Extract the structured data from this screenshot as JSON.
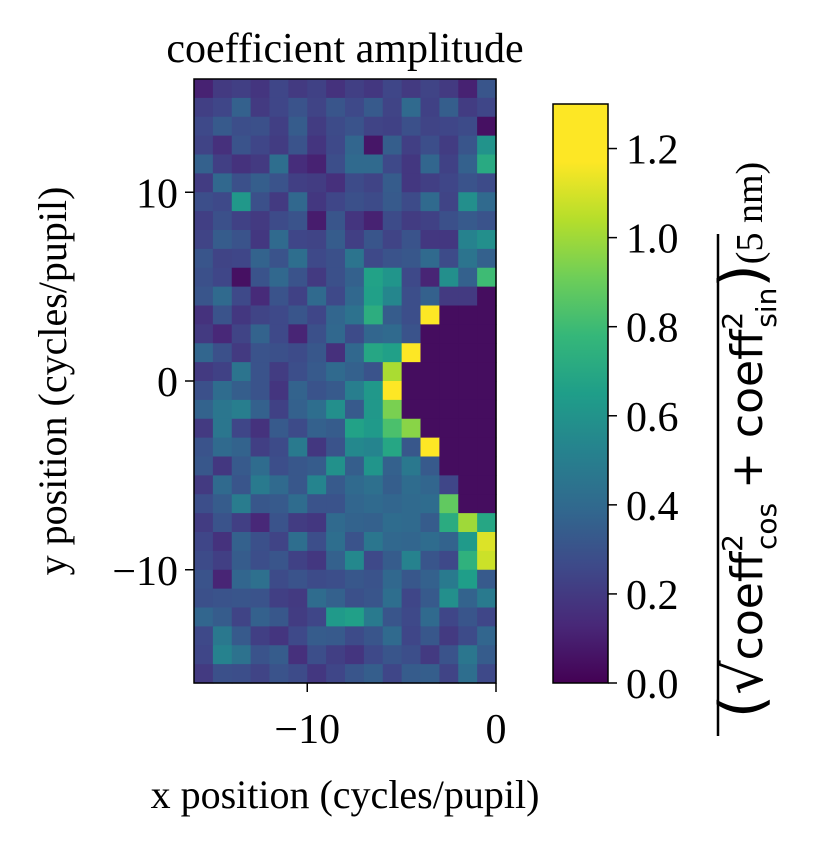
{
  "chart_data": {
    "type": "heatmap",
    "title": "coefficient amplitude",
    "xlabel": "x position (cycles/pupil)",
    "ylabel": "y position (cycles/pupil)",
    "xlim": [
      -16,
      0
    ],
    "ylim": [
      -16,
      16
    ],
    "x_ticks": [
      -10,
      0
    ],
    "x_tick_labels": [
      "−10",
      "0"
    ],
    "y_ticks": [
      -10,
      0,
      10
    ],
    "y_tick_labels": [
      "−10",
      "0",
      "10"
    ],
    "grid": false,
    "colormap": "viridis",
    "colorbar": {
      "vmin": 0.0,
      "vmax": 1.3,
      "ticks": [
        0.0,
        0.2,
        0.4,
        0.6,
        0.8,
        1.0,
        1.2
      ],
      "tick_labels": [
        "0.0",
        "0.2",
        "0.4",
        "0.6",
        "0.8",
        "1.0",
        "1.2"
      ],
      "label_open": "(",
      "label_sqrt": "√",
      "label_term1_base": "coeff",
      "label_term1_sup": "2",
      "label_term1_sub": "cos",
      "label_plus": " + ",
      "label_term2_base": "coeff",
      "label_term2_sup": "2",
      "label_term2_sub": "sin",
      "label_close": ")",
      "label_unit": "(5 nm)"
    },
    "grid_shape": [
      32,
      16
    ],
    "y_centers": [
      15.5,
      -15.5
    ],
    "x_centers": [
      -15.5,
      -0.5
    ],
    "dark_region_description": "coefficients are zero where sqrt(x^2 + y^2) < 5 (masked zone at right edge)",
    "values": [
      [
        0.11,
        0.2,
        0.22,
        0.18,
        0.25,
        0.2,
        0.23,
        0.17,
        0.22,
        0.19,
        0.25,
        0.2,
        0.24,
        0.2,
        0.11,
        0.31
      ],
      [
        0.22,
        0.25,
        0.36,
        0.2,
        0.25,
        0.3,
        0.24,
        0.31,
        0.26,
        0.33,
        0.24,
        0.4,
        0.23,
        0.35,
        0.21,
        0.25
      ],
      [
        0.26,
        0.33,
        0.28,
        0.29,
        0.22,
        0.34,
        0.21,
        0.27,
        0.3,
        0.24,
        0.23,
        0.29,
        0.24,
        0.25,
        0.27,
        0.05
      ],
      [
        0.24,
        0.16,
        0.3,
        0.25,
        0.21,
        0.3,
        0.18,
        0.26,
        0.38,
        0.07,
        0.35,
        0.22,
        0.28,
        0.21,
        0.31,
        0.6
      ],
      [
        0.36,
        0.22,
        0.17,
        0.2,
        0.42,
        0.15,
        0.11,
        0.28,
        0.4,
        0.4,
        0.26,
        0.19,
        0.38,
        0.23,
        0.36,
        0.71
      ],
      [
        0.21,
        0.39,
        0.29,
        0.35,
        0.3,
        0.22,
        0.21,
        0.16,
        0.27,
        0.24,
        0.34,
        0.19,
        0.22,
        0.25,
        0.3,
        0.27
      ],
      [
        0.28,
        0.26,
        0.62,
        0.29,
        0.2,
        0.39,
        0.19,
        0.25,
        0.29,
        0.27,
        0.33,
        0.27,
        0.4,
        0.24,
        0.58,
        0.4
      ],
      [
        0.22,
        0.29,
        0.23,
        0.2,
        0.27,
        0.3,
        0.09,
        0.31,
        0.18,
        0.11,
        0.27,
        0.21,
        0.23,
        0.29,
        0.33,
        0.3
      ],
      [
        0.24,
        0.34,
        0.3,
        0.19,
        0.4,
        0.25,
        0.24,
        0.34,
        0.22,
        0.31,
        0.24,
        0.3,
        0.19,
        0.19,
        0.52,
        0.58
      ],
      [
        0.31,
        0.24,
        0.25,
        0.37,
        0.3,
        0.42,
        0.26,
        0.29,
        0.45,
        0.26,
        0.3,
        0.32,
        0.4,
        0.27,
        0.45,
        0.36
      ],
      [
        0.29,
        0.25,
        0.05,
        0.3,
        0.39,
        0.3,
        0.2,
        0.29,
        0.36,
        0.67,
        0.61,
        0.26,
        0.12,
        0.58,
        0.36,
        0.8
      ],
      [
        0.31,
        0.4,
        0.26,
        0.14,
        0.3,
        0.23,
        0.4,
        0.26,
        0.39,
        0.66,
        0.54,
        0.28,
        0.36,
        0.2,
        0.2,
        0.04
      ],
      [
        0.17,
        0.3,
        0.19,
        0.24,
        0.26,
        0.31,
        0.25,
        0.38,
        0.44,
        0.73,
        0.34,
        0.28,
        1.22,
        0.04,
        0.04,
        0.04
      ],
      [
        0.2,
        0.13,
        0.24,
        0.37,
        0.26,
        0.12,
        0.29,
        0.39,
        0.27,
        0.38,
        0.4,
        0.3,
        0.04,
        0.04,
        0.04,
        0.04
      ],
      [
        0.38,
        0.29,
        0.2,
        0.3,
        0.29,
        0.27,
        0.32,
        0.16,
        0.39,
        0.69,
        0.66,
        1.28,
        0.04,
        0.04,
        0.04,
        0.04
      ],
      [
        0.2,
        0.23,
        0.45,
        0.3,
        0.21,
        0.28,
        0.33,
        0.4,
        0.36,
        0.3,
        1.02,
        0.04,
        0.04,
        0.04,
        0.04,
        0.04
      ],
      [
        0.29,
        0.41,
        0.35,
        0.3,
        0.18,
        0.37,
        0.3,
        0.33,
        0.5,
        0.62,
        1.18,
        0.04,
        0.04,
        0.04,
        0.04,
        0.04
      ],
      [
        0.37,
        0.46,
        0.5,
        0.36,
        0.23,
        0.36,
        0.42,
        0.58,
        0.33,
        0.62,
        0.93,
        0.04,
        0.04,
        0.04,
        0.04,
        0.04
      ],
      [
        0.2,
        0.46,
        0.25,
        0.17,
        0.33,
        0.27,
        0.36,
        0.34,
        0.67,
        0.63,
        0.83,
        0.96,
        0.04,
        0.04,
        0.04,
        0.04
      ],
      [
        0.3,
        0.4,
        0.37,
        0.22,
        0.27,
        0.48,
        0.19,
        0.3,
        0.55,
        0.53,
        0.69,
        0.32,
        1.3,
        0.04,
        0.04,
        0.04
      ],
      [
        0.32,
        0.19,
        0.33,
        0.41,
        0.28,
        0.32,
        0.34,
        0.59,
        0.35,
        0.61,
        0.36,
        0.47,
        0.33,
        0.04,
        0.04,
        0.04
      ],
      [
        0.2,
        0.4,
        0.31,
        0.48,
        0.4,
        0.32,
        0.53,
        0.33,
        0.4,
        0.43,
        0.35,
        0.41,
        0.38,
        0.25,
        0.04,
        0.04
      ],
      [
        0.28,
        0.34,
        0.49,
        0.32,
        0.33,
        0.41,
        0.3,
        0.3,
        0.38,
        0.4,
        0.38,
        0.4,
        0.41,
        0.88,
        0.04,
        0.04
      ],
      [
        0.21,
        0.3,
        0.22,
        0.13,
        0.3,
        0.21,
        0.19,
        0.4,
        0.37,
        0.36,
        0.41,
        0.4,
        0.34,
        0.72,
        1.0,
        0.69
      ],
      [
        0.25,
        0.17,
        0.36,
        0.29,
        0.24,
        0.42,
        0.28,
        0.42,
        0.3,
        0.46,
        0.39,
        0.38,
        0.41,
        0.37,
        0.63,
        1.11
      ],
      [
        0.27,
        0.22,
        0.34,
        0.28,
        0.31,
        0.23,
        0.19,
        0.36,
        0.55,
        0.26,
        0.34,
        0.52,
        0.31,
        0.26,
        0.75,
        1.08
      ],
      [
        0.3,
        0.12,
        0.38,
        0.43,
        0.27,
        0.3,
        0.27,
        0.28,
        0.32,
        0.3,
        0.39,
        0.32,
        0.36,
        0.48,
        0.65,
        0.33
      ],
      [
        0.29,
        0.3,
        0.31,
        0.3,
        0.22,
        0.2,
        0.41,
        0.36,
        0.29,
        0.31,
        0.42,
        0.25,
        0.33,
        0.58,
        0.37,
        0.48
      ],
      [
        0.38,
        0.34,
        0.24,
        0.36,
        0.32,
        0.21,
        0.25,
        0.63,
        0.66,
        0.48,
        0.31,
        0.26,
        0.4,
        0.25,
        0.31,
        0.25
      ],
      [
        0.26,
        0.47,
        0.33,
        0.22,
        0.18,
        0.26,
        0.34,
        0.33,
        0.27,
        0.31,
        0.4,
        0.25,
        0.32,
        0.2,
        0.27,
        0.38
      ],
      [
        0.25,
        0.52,
        0.44,
        0.3,
        0.34,
        0.16,
        0.28,
        0.22,
        0.18,
        0.26,
        0.31,
        0.28,
        0.2,
        0.3,
        0.46,
        0.34
      ],
      [
        0.2,
        0.29,
        0.28,
        0.24,
        0.3,
        0.27,
        0.19,
        0.25,
        0.31,
        0.35,
        0.25,
        0.34,
        0.35,
        0.24,
        0.42,
        0.26
      ]
    ]
  }
}
